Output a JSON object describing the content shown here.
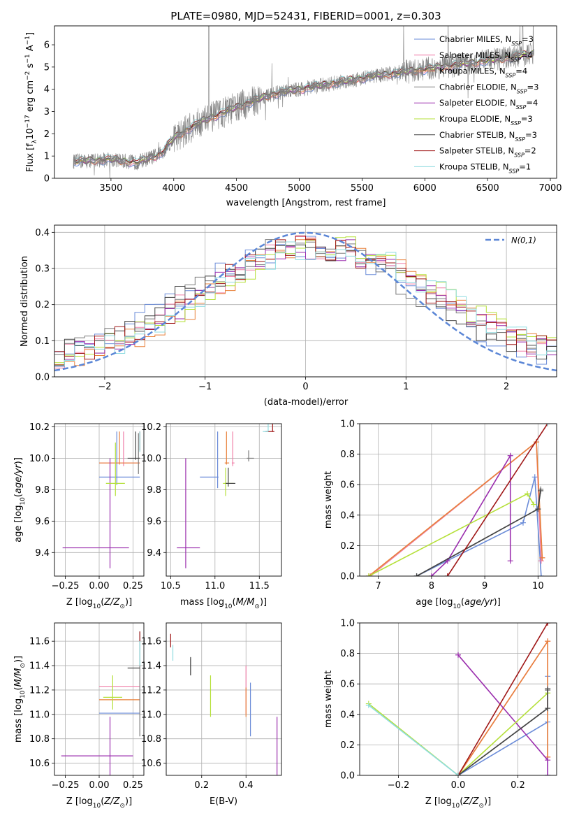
{
  "title": "PLATE=0980, MJD=52431, FIBERID=0001, z=0.303",
  "colors": {
    "chabrier_miles": "#6a8bd8",
    "salpeter_miles": "#f07fa8",
    "kroupa_miles": "#e8803a",
    "chabrier_elodie": "#7a7a7a",
    "salpeter_elodie": "#9b2fae",
    "kroupa_elodie": "#b5e03a",
    "chabrier_stelib": "#444444",
    "salpeter_stelib": "#a01818",
    "kroupa_stelib": "#8fdce0",
    "normal": "#5b86d6",
    "data": "#808080"
  },
  "chart_data": [
    {
      "id": "spectrum",
      "type": "line",
      "xlabel": "wavelength [Angstrom, rest frame]",
      "ylabel": "Flux [f_λ 10^-17 erg cm^-2 s^-1 A^-1]",
      "xlim": [
        3050,
        7050
      ],
      "ylim": [
        0,
        6.85
      ],
      "xticks": [
        3500,
        4000,
        4500,
        5000,
        5500,
        6000,
        6500,
        7000
      ],
      "yticks": [
        0,
        1,
        2,
        3,
        4,
        5,
        6
      ],
      "grid": false,
      "legend_placement": "right",
      "legend": [
        {
          "name": "Chabrier MILES, N_SSP=3",
          "base": "Chabrier MILES, N",
          "sub": "SSP",
          "tail": "=3",
          "color_key": "chabrier_miles"
        },
        {
          "name": "Salpeter MILES, N_SSP=4",
          "base": "Salpeter MILES, N",
          "sub": "SSP",
          "tail": "=4",
          "color_key": "salpeter_miles"
        },
        {
          "name": "Kroupa MILES, N_SSP=4",
          "base": "Kroupa MILES, N",
          "sub": "SSP",
          "tail": "=4",
          "color_key": "kroupa_miles"
        },
        {
          "name": "Chabrier ELODIE, N_SSP=3",
          "base": "Chabrier ELODIE, N",
          "sub": "SSP",
          "tail": "=3",
          "color_key": "chabrier_elodie"
        },
        {
          "name": "Salpeter ELODIE, N_SSP=4",
          "base": "Salpeter ELODIE, N",
          "sub": "SSP",
          "tail": "=4",
          "color_key": "salpeter_elodie"
        },
        {
          "name": "Kroupa ELODIE, N_SSP=3",
          "base": "Kroupa ELODIE, N",
          "sub": "SSP",
          "tail": "=3",
          "color_key": "kroupa_elodie"
        },
        {
          "name": "Chabrier STELIB, N_SSP=3",
          "base": "Chabrier STELIB, N",
          "sub": "SSP",
          "tail": "=3",
          "color_key": "chabrier_stelib"
        },
        {
          "name": "Salpeter STELIB, N_SSP=2",
          "base": "Salpeter STELIB, N",
          "sub": "SSP",
          "tail": "=2",
          "color_key": "salpeter_stelib"
        },
        {
          "name": "Kroupa STELIB, N_SSP=1",
          "base": "Kroupa STELIB, N",
          "sub": "SSP",
          "tail": "=1",
          "color_key": "kroupa_stelib"
        }
      ],
      "data_x_range": [
        3200,
        6870
      ],
      "continuum_points": [
        [
          3200,
          0.75
        ],
        [
          3500,
          0.85
        ],
        [
          3700,
          0.7
        ],
        [
          3900,
          1.1
        ],
        [
          4000,
          1.8
        ],
        [
          4200,
          2.5
        ],
        [
          4500,
          3.2
        ],
        [
          4800,
          3.8
        ],
        [
          5000,
          4.0
        ],
        [
          5300,
          4.3
        ],
        [
          5600,
          4.6
        ],
        [
          6000,
          4.9
        ],
        [
          6400,
          5.2
        ],
        [
          6870,
          5.6
        ]
      ]
    },
    {
      "id": "residuals",
      "type": "line",
      "xlabel": "(data-model)/error",
      "ylabel": "Normed distribution",
      "xlim": [
        -2.5,
        2.5
      ],
      "ylim": [
        0,
        0.42
      ],
      "xticks": [
        -2,
        -1,
        0,
        1,
        2
      ],
      "yticks": [
        0.0,
        0.1,
        0.2,
        0.3,
        0.4
      ],
      "grid": true,
      "legend_placement": "top-right",
      "legend_label": "N(0,1)",
      "normal": {
        "mu": 0,
        "sigma": 1
      }
    },
    {
      "id": "age_vs_Z",
      "type": "scatter",
      "xlabel": "Z [log10(Z/Z⊙)]",
      "ylabel": "age  [log10(age/yr)]",
      "xlim": [
        -0.33,
        0.33
      ],
      "ylim": [
        9.25,
        10.22
      ],
      "xticks": [
        -0.25,
        0.0,
        0.25
      ],
      "yticks": [
        9.4,
        9.6,
        9.8,
        10.0,
        10.2
      ],
      "grid": true,
      "points": [
        {
          "color_key": "chabrier_miles",
          "x": 0.13,
          "xerr": [
            0.13,
            0.17
          ],
          "y": 9.88,
          "yerr": [
            0.05,
            0.29
          ]
        },
        {
          "color_key": "salpeter_miles",
          "x": 0.18,
          "xerr": [
            0.18,
            0.12
          ],
          "y": 9.97,
          "yerr": [
            0.02,
            0.2
          ]
        },
        {
          "color_key": "kroupa_miles",
          "x": 0.15,
          "xerr": [
            0.15,
            0.15
          ],
          "y": 9.97,
          "yerr": [
            0.01,
            0.2
          ]
        },
        {
          "color_key": "chabrier_elodie",
          "x": 0.29,
          "xerr": [
            0.0,
            0.01
          ],
          "y": 10.0,
          "yerr": [
            0.1,
            0.16
          ]
        },
        {
          "color_key": "salpeter_elodie",
          "x": 0.08,
          "xerr": [
            0.35,
            0.14
          ],
          "y": 9.43,
          "yerr": [
            0.13,
            0.57
          ]
        },
        {
          "color_key": "kroupa_elodie",
          "x": 0.12,
          "xerr": [
            0.07,
            0.07
          ],
          "y": 9.84,
          "yerr": [
            0.08,
            0.26
          ]
        },
        {
          "color_key": "chabrier_stelib",
          "x": 0.27,
          "xerr": [
            0.06,
            0.03
          ],
          "y": 10.0,
          "yerr": [
            0.01,
            0.17
          ]
        },
        {
          "color_key": "salpeter_stelib",
          "x": 0.3,
          "xerr": [
            0.0,
            0.0
          ],
          "y": 10.06,
          "yerr": [
            0.01,
            0.11
          ]
        },
        {
          "color_key": "kroupa_stelib",
          "x": 0.3,
          "xerr": [
            0.0,
            0.0
          ],
          "y": 10.05,
          "yerr": [
            0.01,
            0.12
          ]
        }
      ]
    },
    {
      "id": "age_vs_mass",
      "type": "scatter",
      "xlabel": "mass [log10(M/M⊙)]",
      "ylabel": "",
      "xlim": [
        10.45,
        11.75
      ],
      "ylim": [
        9.25,
        10.22
      ],
      "xticks": [
        10.5,
        11.0,
        11.5
      ],
      "yticks": [
        9.4,
        9.6,
        9.8,
        10.0,
        10.2
      ],
      "grid": true,
      "points": [
        {
          "color_key": "chabrier_miles",
          "x": 11.03,
          "xerr": [
            0.2,
            0.01
          ],
          "y": 9.88,
          "yerr": [
            0.07,
            0.29
          ]
        },
        {
          "color_key": "salpeter_miles",
          "x": 11.2,
          "xerr": [
            0.01,
            0.02
          ],
          "y": 9.97,
          "yerr": [
            0.02,
            0.2
          ]
        },
        {
          "color_key": "kroupa_miles",
          "x": 11.13,
          "xerr": [
            0.02,
            0.03
          ],
          "y": 9.97,
          "yerr": [
            0.01,
            0.2
          ]
        },
        {
          "color_key": "chabrier_elodie",
          "x": 11.38,
          "xerr": [
            0.02,
            0.06
          ],
          "y": 10.0,
          "yerr": [
            0.02,
            0.05
          ]
        },
        {
          "color_key": "salpeter_elodie",
          "x": 10.67,
          "xerr": [
            0.1,
            0.16
          ],
          "y": 9.43,
          "yerr": [
            0.13,
            0.57
          ]
        },
        {
          "color_key": "kroupa_elodie",
          "x": 11.12,
          "xerr": [
            0.03,
            0.09
          ],
          "y": 9.84,
          "yerr": [
            0.08,
            0.1
          ]
        },
        {
          "color_key": "chabrier_stelib",
          "x": 11.15,
          "xerr": [
            0.03,
            0.08
          ],
          "y": 9.84,
          "yerr": [
            0.02,
            0.1
          ]
        },
        {
          "color_key": "salpeter_stelib",
          "x": 11.65,
          "xerr": [
            0.08,
            0.02
          ],
          "y": 10.17,
          "yerr": [
            0.0,
            0.1
          ]
        },
        {
          "color_key": "kroupa_stelib",
          "x": 11.6,
          "xerr": [
            0.06,
            0.0
          ],
          "y": 10.17,
          "yerr": [
            0.0,
            0.07
          ]
        }
      ]
    },
    {
      "id": "massweight_vs_age",
      "type": "line",
      "xlabel": "age  [log10(age/yr)]",
      "ylabel": "mass weight",
      "xlim": [
        6.65,
        10.35
      ],
      "ylim": [
        0,
        1.0
      ],
      "xticks": [
        7,
        8,
        9,
        10
      ],
      "yticks": [
        0.0,
        0.2,
        0.4,
        0.6,
        0.8,
        1.0
      ],
      "grid": true,
      "series": [
        {
          "color_key": "chabrier_miles",
          "x": [
            7.72,
            9.72,
            9.94,
            10.06
          ],
          "y": [
            0.0,
            0.35,
            0.65,
            0.0
          ]
        },
        {
          "color_key": "salpeter_miles",
          "x": [
            6.85,
            9.97,
            10.06,
            10.08
          ],
          "y": [
            0.0,
            0.88,
            0.1,
            0.12
          ]
        },
        {
          "color_key": "kroupa_miles",
          "x": [
            6.82,
            9.97,
            10.08
          ],
          "y": [
            0.0,
            0.88,
            0.12
          ]
        },
        {
          "color_key": "chabrier_elodie",
          "x": [
            7.72,
            10.0,
            10.05
          ],
          "y": [
            0.0,
            0.44,
            0.57
          ]
        },
        {
          "color_key": "salpeter_elodie",
          "x": [
            8.0,
            8.3,
            9.48,
            9.48
          ],
          "y": [
            0.0,
            0.1,
            0.79,
            0.1
          ]
        },
        {
          "color_key": "kroupa_elodie",
          "x": [
            6.82,
            9.8,
            9.92
          ],
          "y": [
            0.0,
            0.54,
            0.47
          ]
        },
        {
          "color_key": "chabrier_stelib",
          "x": [
            7.72,
            10.0,
            10.05
          ],
          "y": [
            0.0,
            0.44,
            0.56
          ]
        },
        {
          "color_key": "salpeter_stelib",
          "x": [
            8.3,
            10.18
          ],
          "y": [
            0.0,
            1.0
          ]
        },
        {
          "color_key": "kroupa_stelib",
          "x": [
            10.18
          ],
          "y": [
            1.0
          ]
        }
      ]
    },
    {
      "id": "mass_vs_Z",
      "type": "scatter",
      "xlabel": "Z [log10(Z/Z⊙)]",
      "ylabel": "mass [log10(M/M⊙)]",
      "xlim": [
        -0.33,
        0.33
      ],
      "ylim": [
        10.5,
        11.75
      ],
      "xticks": [
        -0.25,
        0.0,
        0.25
      ],
      "yticks": [
        10.6,
        10.8,
        11.0,
        11.2,
        11.4,
        11.6
      ],
      "grid": true,
      "points": [
        {
          "color_key": "chabrier_miles",
          "x": 0.13,
          "xerr": [
            0.13,
            0.17
          ],
          "y": 11.01,
          "yerr": [
            0.0,
            0.0
          ]
        },
        {
          "color_key": "salpeter_miles",
          "x": 0.18,
          "xerr": [
            0.18,
            0.12
          ],
          "y": 11.23,
          "yerr": [
            0.0,
            0.0
          ]
        },
        {
          "color_key": "kroupa_miles",
          "x": 0.15,
          "xerr": [
            0.15,
            0.15
          ],
          "y": 11.12,
          "yerr": [
            0.0,
            0.0
          ]
        },
        {
          "color_key": "chabrier_elodie",
          "x": 0.3,
          "xerr": [
            0.0,
            0.0
          ],
          "y": 11.4,
          "yerr": [
            0.58,
            0.28
          ]
        },
        {
          "color_key": "salpeter_elodie",
          "x": 0.08,
          "xerr": [
            0.36,
            0.17
          ],
          "y": 10.66,
          "yerr": [
            0.16,
            0.32
          ]
        },
        {
          "color_key": "kroupa_elodie",
          "x": 0.1,
          "xerr": [
            0.07,
            0.07
          ],
          "y": 11.14,
          "yerr": [
            0.1,
            0.18
          ]
        },
        {
          "color_key": "chabrier_stelib",
          "x": 0.27,
          "xerr": [
            0.06,
            0.03
          ],
          "y": 11.38,
          "yerr": [
            0.0,
            0.0
          ]
        },
        {
          "color_key": "salpeter_stelib",
          "x": 0.3,
          "xerr": [
            0.0,
            0.0
          ],
          "y": 11.65,
          "yerr": [
            0.05,
            0.03
          ]
        },
        {
          "color_key": "kroupa_stelib",
          "x": 0.3,
          "xerr": [
            0.0,
            0.0
          ],
          "y": 11.6,
          "yerr": [
            0.2,
            0.0
          ]
        }
      ]
    },
    {
      "id": "mass_vs_ebv",
      "type": "scatter",
      "xlabel": "E(B-V)",
      "ylabel": "",
      "xlim": [
        0.04,
        0.56
      ],
      "ylim": [
        10.5,
        11.75
      ],
      "xticks": [
        0.2,
        0.4
      ],
      "yticks": [
        10.6,
        10.8,
        11.0,
        11.2,
        11.4,
        11.6
      ],
      "grid": true,
      "points": [
        {
          "color_key": "chabrier_miles",
          "x": 0.42,
          "xerr": [
            0.0,
            0.0
          ],
          "y": 11.04,
          "yerr": [
            0.22,
            0.22
          ]
        },
        {
          "color_key": "salpeter_miles",
          "x": 0.4,
          "xerr": [
            0.0,
            0.0
          ],
          "y": 11.2,
          "yerr": [
            0.2,
            0.2
          ]
        },
        {
          "color_key": "kroupa_miles",
          "x": 0.4,
          "xerr": [
            0.0,
            0.0
          ],
          "y": 11.1,
          "yerr": [
            0.12,
            0.12
          ]
        },
        {
          "color_key": "chabrier_elodie",
          "x": 0.15,
          "xerr": [
            0.0,
            0.0
          ],
          "y": 11.38,
          "yerr": [
            0.06,
            0.08
          ]
        },
        {
          "color_key": "salpeter_elodie",
          "x": 0.54,
          "xerr": [
            0.0,
            0.0
          ],
          "y": 10.74,
          "yerr": [
            0.24,
            0.24
          ]
        },
        {
          "color_key": "kroupa_elodie",
          "x": 0.24,
          "xerr": [
            0.0,
            0.0
          ],
          "y": 11.15,
          "yerr": [
            0.17,
            0.17
          ]
        },
        {
          "color_key": "chabrier_stelib",
          "x": 0.15,
          "xerr": [
            0.0,
            0.0
          ],
          "y": 11.39,
          "yerr": [
            0.07,
            0.08
          ]
        },
        {
          "color_key": "salpeter_stelib",
          "x": 0.06,
          "xerr": [
            0.0,
            0.0
          ],
          "y": 11.6,
          "yerr": [
            0.05,
            0.06
          ]
        },
        {
          "color_key": "kroupa_stelib",
          "x": 0.07,
          "xerr": [
            0.0,
            0.0
          ],
          "y": 11.52,
          "yerr": [
            0.08,
            0.05
          ]
        }
      ]
    },
    {
      "id": "massweight_vs_Z",
      "type": "line",
      "xlabel": "Z [log10(Z/Z⊙)]",
      "ylabel": "mass weight",
      "xlim": [
        -0.33,
        0.33
      ],
      "ylim": [
        0,
        1.0
      ],
      "xticks": [
        -0.2,
        0.0,
        0.2
      ],
      "yticks": [
        0.0,
        0.2,
        0.4,
        0.6,
        0.8,
        1.0
      ],
      "grid": true,
      "series": [
        {
          "color_key": "chabrier_miles",
          "x": [
            0.0,
            0.3,
            0.3,
            0.3
          ],
          "y": [
            0.0,
            0.35,
            0.65,
            0.0
          ]
        },
        {
          "color_key": "salpeter_miles",
          "x": [
            0.0,
            0.3,
            0.3
          ],
          "y": [
            0.0,
            0.88,
            0.12
          ]
        },
        {
          "color_key": "kroupa_miles",
          "x": [
            0.0,
            0.3,
            0.3
          ],
          "y": [
            0.0,
            0.88,
            0.12
          ]
        },
        {
          "color_key": "chabrier_elodie",
          "x": [
            0.0,
            0.3,
            0.3
          ],
          "y": [
            0.0,
            0.44,
            0.57
          ]
        },
        {
          "color_key": "salpeter_elodie",
          "x": [
            0.0,
            0.3,
            0.3
          ],
          "y": [
            0.79,
            0.1,
            0.0
          ]
        },
        {
          "color_key": "kroupa_elodie",
          "x": [
            -0.3,
            0.0,
            0.3
          ],
          "y": [
            0.47,
            0.0,
            0.54
          ]
        },
        {
          "color_key": "chabrier_stelib",
          "x": [
            0.0,
            0.3,
            0.3
          ],
          "y": [
            0.0,
            0.44,
            0.56
          ]
        },
        {
          "color_key": "salpeter_stelib",
          "x": [
            0.0,
            0.3
          ],
          "y": [
            0.0,
            1.0
          ]
        },
        {
          "color_key": "kroupa_stelib",
          "x": [
            -0.3,
            0.0
          ],
          "y": [
            0.46,
            0.0
          ]
        }
      ]
    }
  ]
}
